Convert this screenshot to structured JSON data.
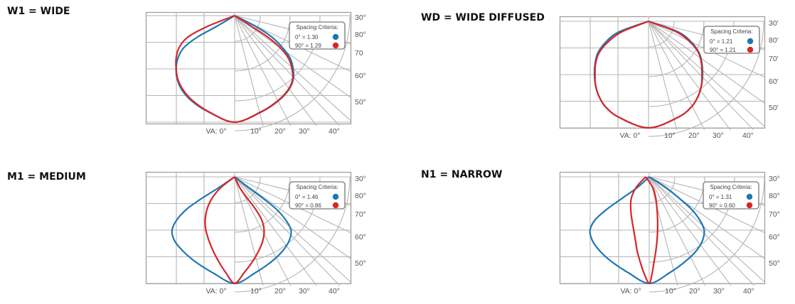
{
  "colors": {
    "series_0deg": "#1f77b4",
    "series_90deg": "#d62728",
    "grid": "#b5b5b5",
    "frame": "#9a9a9a"
  },
  "panels": [
    {
      "id": "w1",
      "title": "W1 = WIDE",
      "ticks_right": [
        "30°",
        "80°",
        "70",
        "60°",
        "50°"
      ],
      "ticks_bottom": [
        "VA: 0°",
        "10°",
        "20°",
        "30°",
        "40°"
      ],
      "legend": {
        "title": "Spacing Criteria:",
        "rows": [
          {
            "label": "0° = 1.30",
            "color_key": "series_0deg"
          },
          {
            "label": "90° = 1.29",
            "color_key": "series_90deg"
          }
        ]
      },
      "chart_data": {
        "type": "polar",
        "series": [
          {
            "name": "0°",
            "spacing_criteria": 1.3
          },
          {
            "name": "90°",
            "spacing_criteria": 1.29
          }
        ]
      }
    },
    {
      "id": "wd",
      "title": "WD = WIDE DIFFUSED",
      "ticks_right": [
        "30'",
        "80'",
        "70'",
        "60'",
        "50'"
      ],
      "ticks_bottom": [
        "VA: 0°",
        "10°",
        "20°",
        "30°",
        "40°"
      ],
      "legend": {
        "title": "Spacing Criteria:",
        "rows": [
          {
            "label": "0° = 1.21",
            "color_key": "series_0deg"
          },
          {
            "label": "90° = 1.21",
            "color_key": "series_90deg"
          }
        ]
      },
      "chart_data": {
        "type": "polar",
        "series": [
          {
            "name": "0°",
            "spacing_criteria": 1.21
          },
          {
            "name": "90°",
            "spacing_criteria": 1.21
          }
        ]
      }
    },
    {
      "id": "m1",
      "title": "M1 = MEDIUM",
      "ticks_right": [
        "30°",
        "80°",
        "70°",
        "60°",
        "50°"
      ],
      "ticks_bottom": [
        "VA: 0°",
        "10°",
        "20°",
        "30°",
        "40°"
      ],
      "legend": {
        "title": "Spacing Criteria:",
        "rows": [
          {
            "label": "0° = 1.46",
            "color_key": "series_0deg"
          },
          {
            "label": "90° = 0.86",
            "color_key": "series_90deg"
          }
        ]
      },
      "chart_data": {
        "type": "polar",
        "series": [
          {
            "name": "0°",
            "spacing_criteria": 1.46
          },
          {
            "name": "90°",
            "spacing_criteria": 0.86
          }
        ]
      }
    },
    {
      "id": "n1",
      "title": "N1 = NARROW",
      "ticks_right": [
        "30°",
        "80°",
        "70°",
        "60°",
        "50°"
      ],
      "ticks_bottom": [
        "VA: 0°",
        "10°",
        "20°",
        "30°",
        "40°"
      ],
      "legend": {
        "title": "Spacing Criteria:",
        "rows": [
          {
            "label": "0° = 1.31",
            "color_key": "series_0deg"
          },
          {
            "label": "90° = 0.60",
            "color_key": "series_90deg"
          }
        ]
      },
      "chart_data": {
        "type": "polar",
        "series": [
          {
            "name": "0°",
            "spacing_criteria": 1.31
          },
          {
            "name": "90°",
            "spacing_criteria": 0.6
          }
        ]
      }
    }
  ]
}
